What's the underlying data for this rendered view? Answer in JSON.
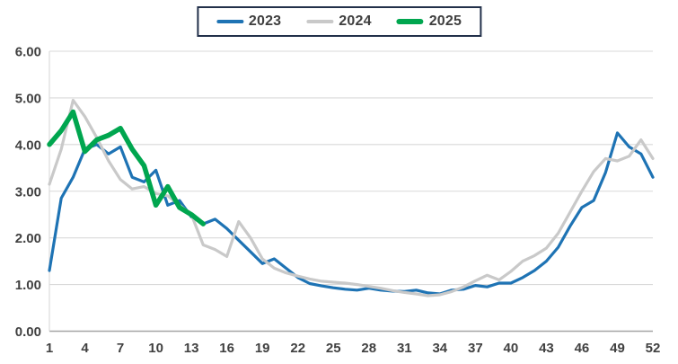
{
  "title": "",
  "legend": {
    "position": "top-center",
    "border_color": "#22304a"
  },
  "axis_text_color": "#404040",
  "gridline_color": "#d9d9d9",
  "baseline_color": "#a6a6a6",
  "chart_data": {
    "type": "line",
    "xlabel": "",
    "ylabel": "",
    "xlim": [
      1,
      52
    ],
    "ylim": [
      0,
      6
    ],
    "grid": "horizontal-only",
    "legend_position": "top-center",
    "x_tick_labels": [
      "1",
      "4",
      "7",
      "10",
      "13",
      "16",
      "19",
      "22",
      "25",
      "28",
      "31",
      "34",
      "37",
      "40",
      "43",
      "46",
      "49",
      "52"
    ],
    "y_tick_labels": [
      "0.00",
      "1.00",
      "2.00",
      "3.00",
      "4.00",
      "5.00",
      "6.00"
    ],
    "x_weeks": [
      1,
      2,
      3,
      4,
      5,
      6,
      7,
      8,
      9,
      10,
      11,
      12,
      13,
      14,
      15,
      16,
      17,
      18,
      19,
      20,
      21,
      22,
      23,
      24,
      25,
      26,
      27,
      28,
      29,
      30,
      31,
      32,
      33,
      34,
      35,
      36,
      37,
      38,
      39,
      40,
      41,
      42,
      43,
      44,
      45,
      46,
      47,
      48,
      49,
      50,
      51,
      52
    ],
    "series": [
      {
        "name": "2023",
        "color": "#1e73b4",
        "line_width": 3.2,
        "values": [
          1.3,
          2.85,
          3.3,
          3.9,
          4.0,
          3.8,
          3.95,
          3.3,
          3.2,
          3.45,
          2.7,
          2.8,
          2.45,
          2.3,
          2.4,
          2.2,
          1.95,
          1.7,
          1.45,
          1.55,
          1.35,
          1.15,
          1.02,
          0.97,
          0.93,
          0.9,
          0.88,
          0.92,
          0.88,
          0.86,
          0.85,
          0.88,
          0.82,
          0.8,
          0.88,
          0.9,
          0.98,
          0.95,
          1.03,
          1.03,
          1.15,
          1.3,
          1.5,
          1.8,
          2.25,
          2.65,
          2.8,
          3.4,
          4.25,
          3.95,
          3.8,
          3.3
        ]
      },
      {
        "name": "2024",
        "color": "#c9c9c9",
        "line_width": 3.2,
        "values": [
          3.15,
          3.9,
          4.95,
          4.6,
          4.15,
          3.65,
          3.25,
          3.05,
          3.1,
          2.95,
          2.9,
          2.7,
          2.5,
          1.85,
          1.75,
          1.6,
          2.35,
          2.0,
          1.55,
          1.35,
          1.25,
          1.18,
          1.12,
          1.07,
          1.05,
          1.03,
          1.0,
          0.96,
          0.92,
          0.87,
          0.83,
          0.8,
          0.76,
          0.78,
          0.85,
          0.95,
          1.08,
          1.2,
          1.1,
          1.28,
          1.5,
          1.62,
          1.78,
          2.1,
          2.55,
          3.0,
          3.42,
          3.7,
          3.65,
          3.75,
          4.1,
          3.7
        ]
      },
      {
        "name": "2025",
        "color": "#00a64f",
        "line_width": 5.5,
        "values": [
          4.0,
          4.3,
          4.7,
          3.85,
          4.1,
          4.2,
          4.35,
          3.9,
          3.55,
          2.7,
          3.1,
          2.65,
          2.5,
          2.3,
          null,
          null,
          null,
          null,
          null,
          null,
          null,
          null,
          null,
          null,
          null,
          null,
          null,
          null,
          null,
          null,
          null,
          null,
          null,
          null,
          null,
          null,
          null,
          null,
          null,
          null,
          null,
          null,
          null,
          null,
          null,
          null,
          null,
          null,
          null,
          null,
          null,
          null
        ]
      }
    ]
  }
}
